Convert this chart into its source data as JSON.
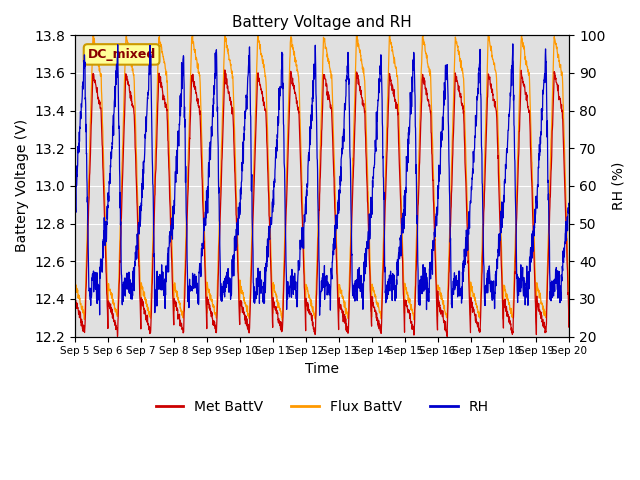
{
  "title": "Battery Voltage and RH",
  "xlabel": "Time",
  "ylabel_left": "Battery Voltage (V)",
  "ylabel_right": "RH (%)",
  "annotation": "DC_mixed",
  "ylim_left": [
    12.2,
    13.8
  ],
  "ylim_right": [
    20,
    100
  ],
  "yticks_left": [
    12.2,
    12.4,
    12.6,
    12.8,
    13.0,
    13.2,
    13.4,
    13.6,
    13.8
  ],
  "yticks_right": [
    20,
    30,
    40,
    50,
    60,
    70,
    80,
    90,
    100
  ],
  "xtick_labels": [
    "Sep 5",
    "Sep 6",
    "Sep 7",
    "Sep 8",
    "Sep 9",
    "Sep 10",
    "Sep 11",
    "Sep 12",
    "Sep 13",
    "Sep 14",
    "Sep 15",
    "Sep 16",
    "Sep 17",
    "Sep 18",
    "Sep 19",
    "Sep 20"
  ],
  "color_met": "#cc0000",
  "color_flux": "#ff9900",
  "color_rh": "#0000cc",
  "legend_labels": [
    "Met BattV",
    "Flux BattV",
    "RH"
  ],
  "bg_color": "#e0e0e0",
  "annotation_bg": "#ffff99",
  "annotation_border": "#cc9900",
  "annotation_text_color": "#880000",
  "n_days": 15,
  "samples_per_day": 144
}
